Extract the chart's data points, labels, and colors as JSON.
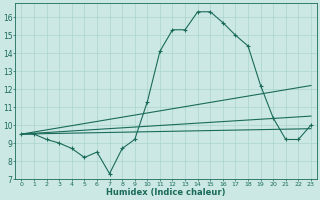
{
  "title": "",
  "xlabel": "Humidex (Indice chaleur)",
  "xlim": [
    -0.5,
    23.5
  ],
  "ylim": [
    7,
    16.8
  ],
  "yticks": [
    7,
    8,
    9,
    10,
    11,
    12,
    13,
    14,
    15,
    16
  ],
  "xticks": [
    0,
    1,
    2,
    3,
    4,
    5,
    6,
    7,
    8,
    9,
    10,
    11,
    12,
    13,
    14,
    15,
    16,
    17,
    18,
    19,
    20,
    21,
    22,
    23
  ],
  "bg_color": "#cce8e4",
  "grid_color": "#aad4cc",
  "line_color": "#1a6b5a",
  "series": [
    {
      "x": [
        0,
        1,
        2,
        3,
        4,
        5,
        6,
        7,
        8,
        9,
        10,
        11,
        12,
        13,
        14,
        15,
        16,
        17,
        18,
        19,
        20,
        21,
        22,
        23
      ],
      "y": [
        9.5,
        9.5,
        9.2,
        9.0,
        8.7,
        8.2,
        8.5,
        7.3,
        8.7,
        9.2,
        11.3,
        14.1,
        15.3,
        15.3,
        16.3,
        16.3,
        15.7,
        15.0,
        14.4,
        12.2,
        10.4,
        9.2,
        9.2,
        10.0
      ],
      "marker": true
    },
    {
      "x": [
        0,
        23
      ],
      "y": [
        9.5,
        12.2
      ],
      "marker": false
    },
    {
      "x": [
        0,
        23
      ],
      "y": [
        9.5,
        10.5
      ],
      "marker": false
    },
    {
      "x": [
        0,
        23
      ],
      "y": [
        9.5,
        9.8
      ],
      "marker": false
    }
  ]
}
